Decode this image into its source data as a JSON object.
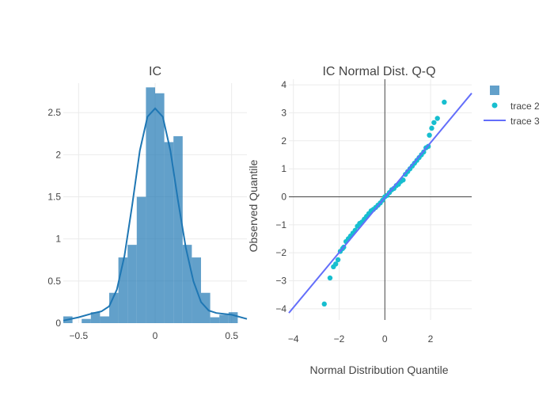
{
  "chart_data": [
    {
      "type": "bar",
      "subtype": "histogram-with-kde",
      "title": "IC",
      "xlabel": "",
      "ylabel": "",
      "xlim": [
        -0.6,
        0.6
      ],
      "ylim": [
        0,
        2.85
      ],
      "x_ticks": [
        -0.5,
        0,
        0.5
      ],
      "x_tick_labels": [
        "−0.5",
        "0",
        "0.5"
      ],
      "y_ticks": [
        0,
        0.5,
        1,
        1.5,
        2,
        2.5
      ],
      "y_tick_labels": [
        "0",
        "0.5",
        "1",
        "1.5",
        "2",
        "2.5"
      ],
      "grid": true,
      "bar_color": "#1f77b4",
      "bar_opacity": 0.7,
      "bins": [
        {
          "x0": -0.6,
          "x1": -0.54,
          "y": 0.08
        },
        {
          "x0": -0.54,
          "x1": -0.48,
          "y": 0.0
        },
        {
          "x0": -0.48,
          "x1": -0.42,
          "y": 0.05
        },
        {
          "x0": -0.42,
          "x1": -0.36,
          "y": 0.13
        },
        {
          "x0": -0.36,
          "x1": -0.3,
          "y": 0.08
        },
        {
          "x0": -0.3,
          "x1": -0.24,
          "y": 0.36
        },
        {
          "x0": -0.24,
          "x1": -0.18,
          "y": 0.78
        },
        {
          "x0": -0.18,
          "x1": -0.12,
          "y": 0.93
        },
        {
          "x0": -0.12,
          "x1": -0.06,
          "y": 1.5
        },
        {
          "x0": -0.06,
          "x1": 0.0,
          "y": 2.8
        },
        {
          "x0": 0.0,
          "x1": 0.06,
          "y": 2.73
        },
        {
          "x0": 0.06,
          "x1": 0.12,
          "y": 2.15
        },
        {
          "x0": 0.12,
          "x1": 0.18,
          "y": 2.22
        },
        {
          "x0": 0.18,
          "x1": 0.24,
          "y": 0.93
        },
        {
          "x0": 0.24,
          "x1": 0.3,
          "y": 0.78
        },
        {
          "x0": 0.3,
          "x1": 0.36,
          "y": 0.36
        },
        {
          "x0": 0.36,
          "x1": 0.42,
          "y": 0.07
        },
        {
          "x0": 0.42,
          "x1": 0.48,
          "y": 0.1
        },
        {
          "x0": 0.48,
          "x1": 0.54,
          "y": 0.13
        },
        {
          "x0": 0.54,
          "x1": 0.6,
          "y": 0.0
        }
      ],
      "kde": {
        "color": "#1f77b4",
        "x": [
          -0.6,
          -0.5,
          -0.4,
          -0.35,
          -0.3,
          -0.25,
          -0.2,
          -0.15,
          -0.1,
          -0.05,
          0.0,
          0.05,
          0.1,
          0.15,
          0.2,
          0.25,
          0.3,
          0.35,
          0.4,
          0.5,
          0.6
        ],
        "y": [
          0.03,
          0.07,
          0.12,
          0.14,
          0.2,
          0.4,
          0.8,
          1.4,
          2.05,
          2.45,
          2.55,
          2.45,
          2.05,
          1.45,
          0.9,
          0.5,
          0.25,
          0.15,
          0.12,
          0.1,
          0.05
        ]
      }
    },
    {
      "type": "scatter",
      "subtype": "qq-plot",
      "title": "IC Normal Dist. Q-Q",
      "xlabel": "Normal Distribution Quantile",
      "ylabel": "Observed Quantile",
      "xlim": [
        -4.2,
        3.8
      ],
      "ylim": [
        -4.4,
        4.2
      ],
      "x_ticks": [
        -4,
        -2,
        0,
        2
      ],
      "x_tick_labels": [
        "−4",
        "−2",
        "0",
        "2"
      ],
      "y_ticks": [
        -4,
        -3,
        -2,
        -1,
        0,
        1,
        2,
        3,
        4
      ],
      "y_tick_labels": [
        "−4",
        "−3",
        "−2",
        "−1",
        "0",
        "1",
        "2",
        "3",
        "4"
      ],
      "grid": true,
      "zero_lines": true,
      "series": [
        {
          "name": "trace 2",
          "type": "scatter",
          "color": "#17becf",
          "x": [
            -2.65,
            -2.4,
            -2.25,
            -2.15,
            -2.05,
            -1.95,
            -1.85,
            -1.8,
            -1.7,
            -1.6,
            -1.5,
            -1.4,
            -1.3,
            -1.2,
            -1.1,
            -1.0,
            -0.9,
            -0.8,
            -0.7,
            -0.6,
            -0.5,
            -0.4,
            -0.3,
            -0.2,
            -0.1,
            0.0,
            0.1,
            0.2,
            0.3,
            0.4,
            0.5,
            0.6,
            0.7,
            0.8,
            0.9,
            1.0,
            1.1,
            1.2,
            1.3,
            1.4,
            1.5,
            1.6,
            1.7,
            1.8,
            1.9,
            1.95,
            2.05,
            2.15,
            2.3,
            2.6
          ],
          "y": [
            -3.83,
            -2.9,
            -2.5,
            -2.4,
            -2.25,
            -1.95,
            -1.85,
            -1.8,
            -1.6,
            -1.5,
            -1.4,
            -1.3,
            -1.2,
            -1.05,
            -0.95,
            -0.9,
            -0.8,
            -0.7,
            -0.6,
            -0.5,
            -0.45,
            -0.38,
            -0.3,
            -0.22,
            -0.12,
            0.0,
            0.05,
            0.15,
            0.25,
            0.3,
            0.4,
            0.45,
            0.55,
            0.6,
            0.8,
            0.9,
            1.0,
            1.1,
            1.2,
            1.3,
            1.4,
            1.5,
            1.6,
            1.75,
            1.8,
            2.2,
            2.45,
            2.65,
            2.8,
            3.38
          ]
        },
        {
          "name": "trace 3",
          "type": "line",
          "color": "#636efa",
          "x": [
            -4.2,
            3.8
          ],
          "y": [
            -4.15,
            3.7
          ]
        }
      ],
      "legend": {
        "placement": "right",
        "entries": [
          {
            "label": "",
            "symbol": "square",
            "color": "#1f77b4"
          },
          {
            "label": "trace 2",
            "symbol": "dot",
            "color": "#17becf"
          },
          {
            "label": "trace 3",
            "symbol": "line",
            "color": "#636efa"
          }
        ]
      }
    }
  ]
}
